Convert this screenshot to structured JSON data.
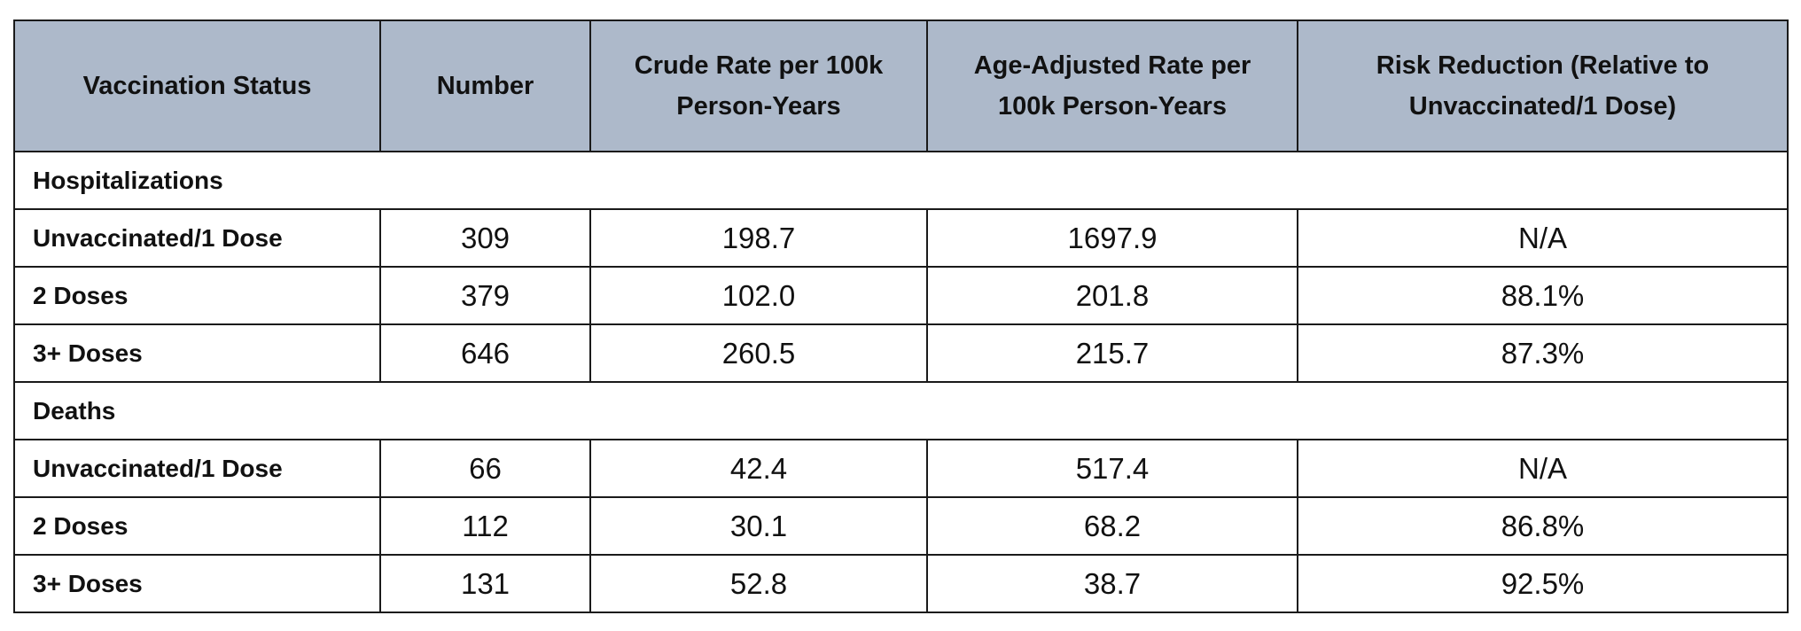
{
  "table": {
    "header": [
      "Vaccination Status",
      "Number",
      "Crude Rate per 100k Person-Years",
      "Age-Adjusted Rate per 100k Person-Years",
      "Risk Reduction (Relative to Unvaccinated/1 Dose)"
    ],
    "sections": [
      {
        "title": "Hospitalizations",
        "rows": [
          [
            "Unvaccinated/1 Dose",
            "309",
            "198.7",
            "1697.9",
            "N/A"
          ],
          [
            "2 Doses",
            "379",
            "102.0",
            "201.8",
            "88.1%"
          ],
          [
            "3+ Doses",
            "646",
            "260.5",
            "215.7",
            "87.3%"
          ]
        ]
      },
      {
        "title": "Deaths",
        "rows": [
          [
            "Unvaccinated/1 Dose",
            "66",
            "42.4",
            "517.4",
            "N/A"
          ],
          [
            "2 Doses",
            "112",
            "30.1",
            "68.2",
            "86.8%"
          ],
          [
            "3+ Doses",
            "131",
            "52.8",
            "38.7",
            "92.5%"
          ]
        ]
      }
    ]
  }
}
